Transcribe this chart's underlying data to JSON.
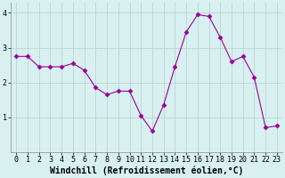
{
  "x": [
    0,
    1,
    2,
    3,
    4,
    5,
    6,
    7,
    8,
    9,
    10,
    11,
    12,
    13,
    14,
    15,
    16,
    17,
    18,
    19,
    20,
    21,
    22,
    23
  ],
  "y": [
    2.75,
    2.75,
    2.45,
    2.45,
    2.45,
    2.55,
    2.35,
    1.85,
    1.65,
    1.75,
    1.75,
    1.05,
    0.6,
    1.35,
    2.45,
    3.45,
    3.95,
    3.9,
    3.3,
    2.6,
    2.75,
    2.15,
    0.7,
    0.75
  ],
  "line_color": "#990099",
  "marker": "D",
  "marker_size": 2.5,
  "bg_color": "#d8f0f0",
  "grid_color": "#b8d8d8",
  "xlabel": "Windchill (Refroidissement éolien,°C)",
  "xlabel_fontsize": 7,
  "tick_fontsize": 6,
  "ylim": [
    0,
    4.3
  ],
  "xlim": [
    -0.5,
    23.5
  ],
  "yticks": [
    1,
    2,
    3,
    4
  ],
  "xticks": [
    0,
    1,
    2,
    3,
    4,
    5,
    6,
    7,
    8,
    9,
    10,
    11,
    12,
    13,
    14,
    15,
    16,
    17,
    18,
    19,
    20,
    21,
    22,
    23
  ]
}
